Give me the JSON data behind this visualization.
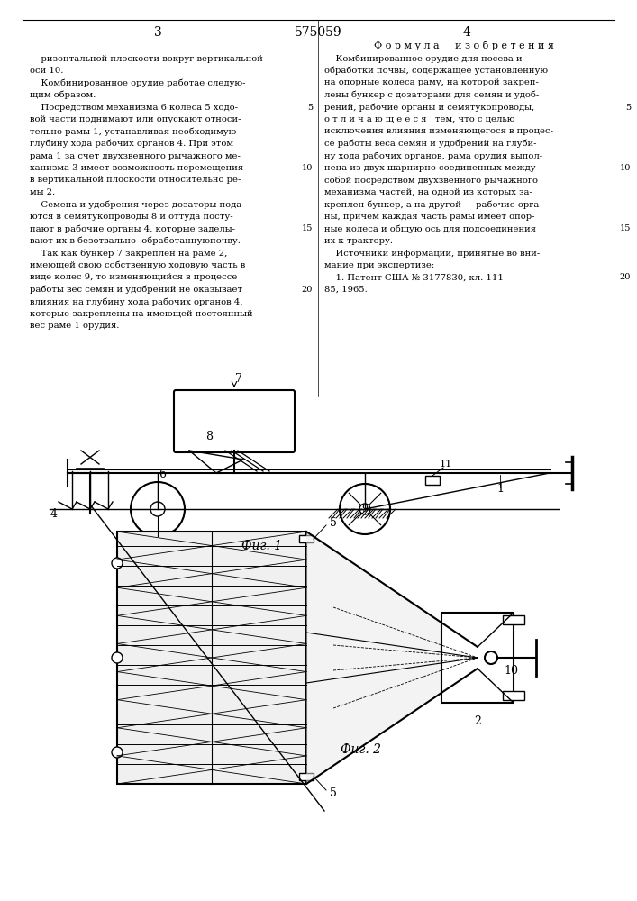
{
  "title_patent": "575059",
  "page_left_num": "3",
  "page_right_num": "4",
  "formula_header": "Ф о р м у л а     и з о б р е т е н и я",
  "left_col_lines": [
    "ризонтальной плоскости вокруг вертикальной",
    "оси 10.",
    "Комбинированное орудие работае следую-",
    "щим образом.",
    "Посредством механизма 6 колеса 5 ходо-",
    "вой части поднимают или опускают относи-",
    "тельно рамы 1, устанавливая необходимую",
    "глубину хода рабочих органов 4. При этом",
    "рама 1 за счет двухзвенного рычажного ме-",
    "ханизма 3 имеет возможность перемещения",
    "в вертикальной плоскости относительно ре-",
    "мы 2.",
    "Семена и удобрения через дозаторы пода-",
    "ются в семятукопроводы 8 и оттуда посту-",
    "пают в рабочие органы 4, которые заделы-",
    "вают их в безотвально  обработаннуюпочву.",
    "Так как бункер 7 закреплен на раме 2,",
    "имеющей свою собственную ходовую часть в",
    "виде колес 9, то изменяющийся в процессе",
    "работы вес семян и удобрений не оказывает",
    "влияния на глубину хода рабочих органов 4,",
    "которые закреплены на имеющей постоянный",
    "вес раме 1 орудия."
  ],
  "right_col_lines": [
    "Комбинированное орудие для посева и",
    "обработки почвы, содержащее установленную",
    "на опорные колеса раму, на которой закреп-",
    "лены бункер с дозаторами для семян и удоб-",
    "рений, рабочие органы и семятукопроводы,",
    "о т л и ч а ю щ е е с я   тем, что с целью",
    "исключения влияния изменяющегося в процес-",
    "се работы веса семян и удобрений на глуби-",
    "ну хода рабочих органов, рама орудия выпол-",
    "нена из двух шарнирно соединенных между",
    "собой посредством двухзвенного рычажного",
    "механизма частей, на одной из которых за-",
    "креплен бункер, а на другой — рабочие орга-",
    "ны, причем каждая часть рамы имеет опор-",
    "ные колеса и общую ось для подсоединения",
    "их к трактору.",
    "Источники информации, принятые во вни-",
    "мание при экспертизе:",
    "    1. Патент США № 3177830, кл. 111-",
    "85, 1965."
  ],
  "fig1_caption": "Фиг. 1",
  "fig2_caption": "Фиг. 2"
}
